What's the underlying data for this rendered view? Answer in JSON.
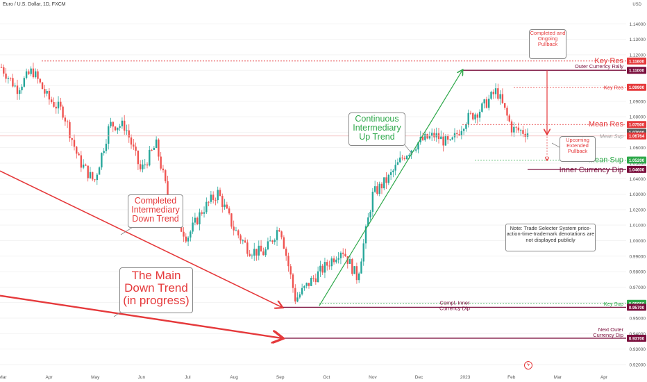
{
  "header": {
    "symbol_title": "Euro / U.S. Dollar, 1D, FXCM",
    "axis_unit": "USD"
  },
  "chart_data": {
    "type": "candlestick",
    "currency": "USD",
    "y_ticks": [
      "1.14000",
      "1.13000",
      "1.12000",
      "1.11000",
      "1.10000",
      "1.09000",
      "1.08000",
      "1.07000",
      "1.06000",
      "1.05000",
      "1.04000",
      "1.03000",
      "1.02000",
      "1.01000",
      "1.00000",
      "0.99000",
      "0.98000",
      "0.97000",
      "0.96000",
      "0.95000",
      "0.94000",
      "0.93000",
      "0.92000"
    ],
    "x_ticks": [
      "Mar",
      "Apr",
      "May",
      "Jun",
      "Jul",
      "Aug",
      "Sep",
      "Oct",
      "Nov",
      "Dec",
      "2023",
      "Feb",
      "Mar",
      "Apr"
    ],
    "ylim": [
      0.915,
      1.15
    ],
    "price_path": [
      {
        "t": "Mar",
        "p": 1.112
      },
      {
        "t": "Mar",
        "p": 1.098
      },
      {
        "t": "Apr",
        "p": 1.11
      },
      {
        "t": "Apr",
        "p": 1.092
      },
      {
        "t": "Apr",
        "p": 1.083
      },
      {
        "t": "May",
        "p": 1.052
      },
      {
        "t": "May",
        "p": 1.038
      },
      {
        "t": "May",
        "p": 1.075
      },
      {
        "t": "Jun",
        "p": 1.074
      },
      {
        "t": "Jun",
        "p": 1.045
      },
      {
        "t": "Jun",
        "p": 1.062
      },
      {
        "t": "Jul",
        "p": 1.018
      },
      {
        "t": "Jul",
        "p": 1.002
      },
      {
        "t": "Jul",
        "p": 1.02
      },
      {
        "t": "Aug",
        "p": 1.031
      },
      {
        "t": "Aug",
        "p": 1.008
      },
      {
        "t": "Aug",
        "p": 0.994
      },
      {
        "t": "Sep",
        "p": 0.992
      },
      {
        "t": "Sep",
        "p": 1.01
      },
      {
        "t": "Sep",
        "p": 0.962
      },
      {
        "t": "Oct",
        "p": 0.974
      },
      {
        "t": "Oct",
        "p": 0.984
      },
      {
        "t": "Oct",
        "p": 0.995
      },
      {
        "t": "Nov",
        "p": 0.976
      },
      {
        "t": "Nov",
        "p": 1.03
      },
      {
        "t": "Nov",
        "p": 1.04
      },
      {
        "t": "Dec",
        "p": 1.055
      },
      {
        "t": "Dec",
        "p": 1.064
      },
      {
        "t": "Dec",
        "p": 1.068
      },
      {
        "t": "2023",
        "p": 1.062
      },
      {
        "t": "2023",
        "p": 1.078
      },
      {
        "t": "2023",
        "p": 1.085
      },
      {
        "t": "Feb",
        "p": 1.097
      },
      {
        "t": "Feb",
        "p": 1.072
      },
      {
        "t": "Feb",
        "p": 1.07
      }
    ],
    "levels": [
      {
        "name": "Key Res",
        "value": 1.116,
        "label": "1.11600",
        "color": "#e5393b",
        "style": "dotted",
        "large": true
      },
      {
        "name": "Outer Currency Rally",
        "value": 1.11,
        "label": "1.11000",
        "color": "#7a0e3c",
        "style": "solid"
      },
      {
        "name": "Key Res",
        "value": 1.099,
        "label": "1.09900",
        "color": "#e5393b",
        "style": "dotted"
      },
      {
        "name": "Mean Res",
        "value": 1.075,
        "label": "1.07500",
        "color": "#e5393b",
        "style": "dotted",
        "large": true
      },
      {
        "name": "",
        "value": 1.07,
        "label": "1.07000",
        "color": "#5a5a5a",
        "style": "none"
      },
      {
        "name": "Mean Sup",
        "value": 1.0676,
        "label": "1.06764",
        "color": "#e5393b",
        "style": "dotted"
      },
      {
        "name": "Mean Sup",
        "value": 1.052,
        "label": "1.05200",
        "color": "#2ea84a",
        "style": "dotted",
        "large": true
      },
      {
        "name": "Inner Currency Dip",
        "value": 1.046,
        "label": "1.04600",
        "color": "#7a0e3c",
        "style": "solid",
        "large": true
      },
      {
        "name": "Key Sup",
        "value": 0.9595,
        "label": "0.95950",
        "color": "#2ea84a",
        "style": "dotted"
      },
      {
        "name": "Compl. Inner Currency Dip",
        "value": 0.957,
        "label": "0.95700",
        "color": "#7a0e3c",
        "style": "solid"
      },
      {
        "name": "Next Outer Currency Dip",
        "value": 0.937,
        "label": "0.93700",
        "color": "#7a0e3c",
        "style": "solid"
      }
    ]
  },
  "annotations": {
    "completed_ongoing_pullback": "Completed and Ongoing Pullback",
    "upcoming_extended_pullback": "Upcoming Extended Pullback",
    "continuous_intermediary_up_trend": "Continuous Intermediary Up Trend",
    "completed_intermediary_down_trend": "Completed Intermediary Down Trend",
    "main_down_trend": "The Main Down Trend (in progress)",
    "note": "Note: Trade Selecter System price-action-time-trademark denotations are not displayed publicly"
  },
  "colors": {
    "up": "#26a69a",
    "down": "#ef5350",
    "red": "#e5393b",
    "green": "#2ea84a",
    "maroon": "#7a0e3c"
  }
}
